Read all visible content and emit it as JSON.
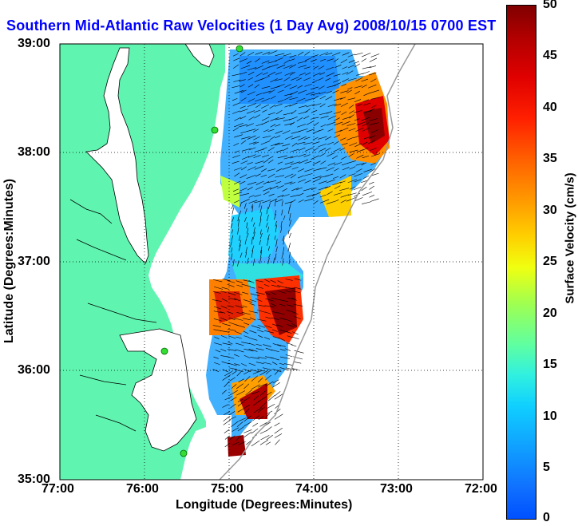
{
  "title": "Southern Mid-Atlantic Raw Velocities (1 Day Avg) 2008/10/15 0700 EST",
  "xlabel": "Longitude (Degrees:Minutes)",
  "ylabel": "Latitude (Degrees:Minutes)",
  "colorbar_label": "Surface Velocity (cm/s)",
  "x_ticks": [
    "77:00",
    "76:00",
    "75:00",
    "74:00",
    "73:00",
    "72:00"
  ],
  "y_ticks": [
    "39:00",
    "38:00",
    "37:00",
    "36:00",
    "35:00"
  ],
  "colorbar_ticks": [
    "50",
    "45",
    "40",
    "35",
    "30",
    "25",
    "20",
    "15",
    "10",
    "5",
    "0"
  ],
  "colors": {
    "land": "#5ff5b0",
    "title": "#0000ff",
    "station_marker": "#33dd33"
  },
  "map_extent": {
    "lon": [
      -77,
      -72
    ],
    "lat": [
      35,
      39
    ]
  },
  "colorbar_range": [
    0,
    50
  ]
}
